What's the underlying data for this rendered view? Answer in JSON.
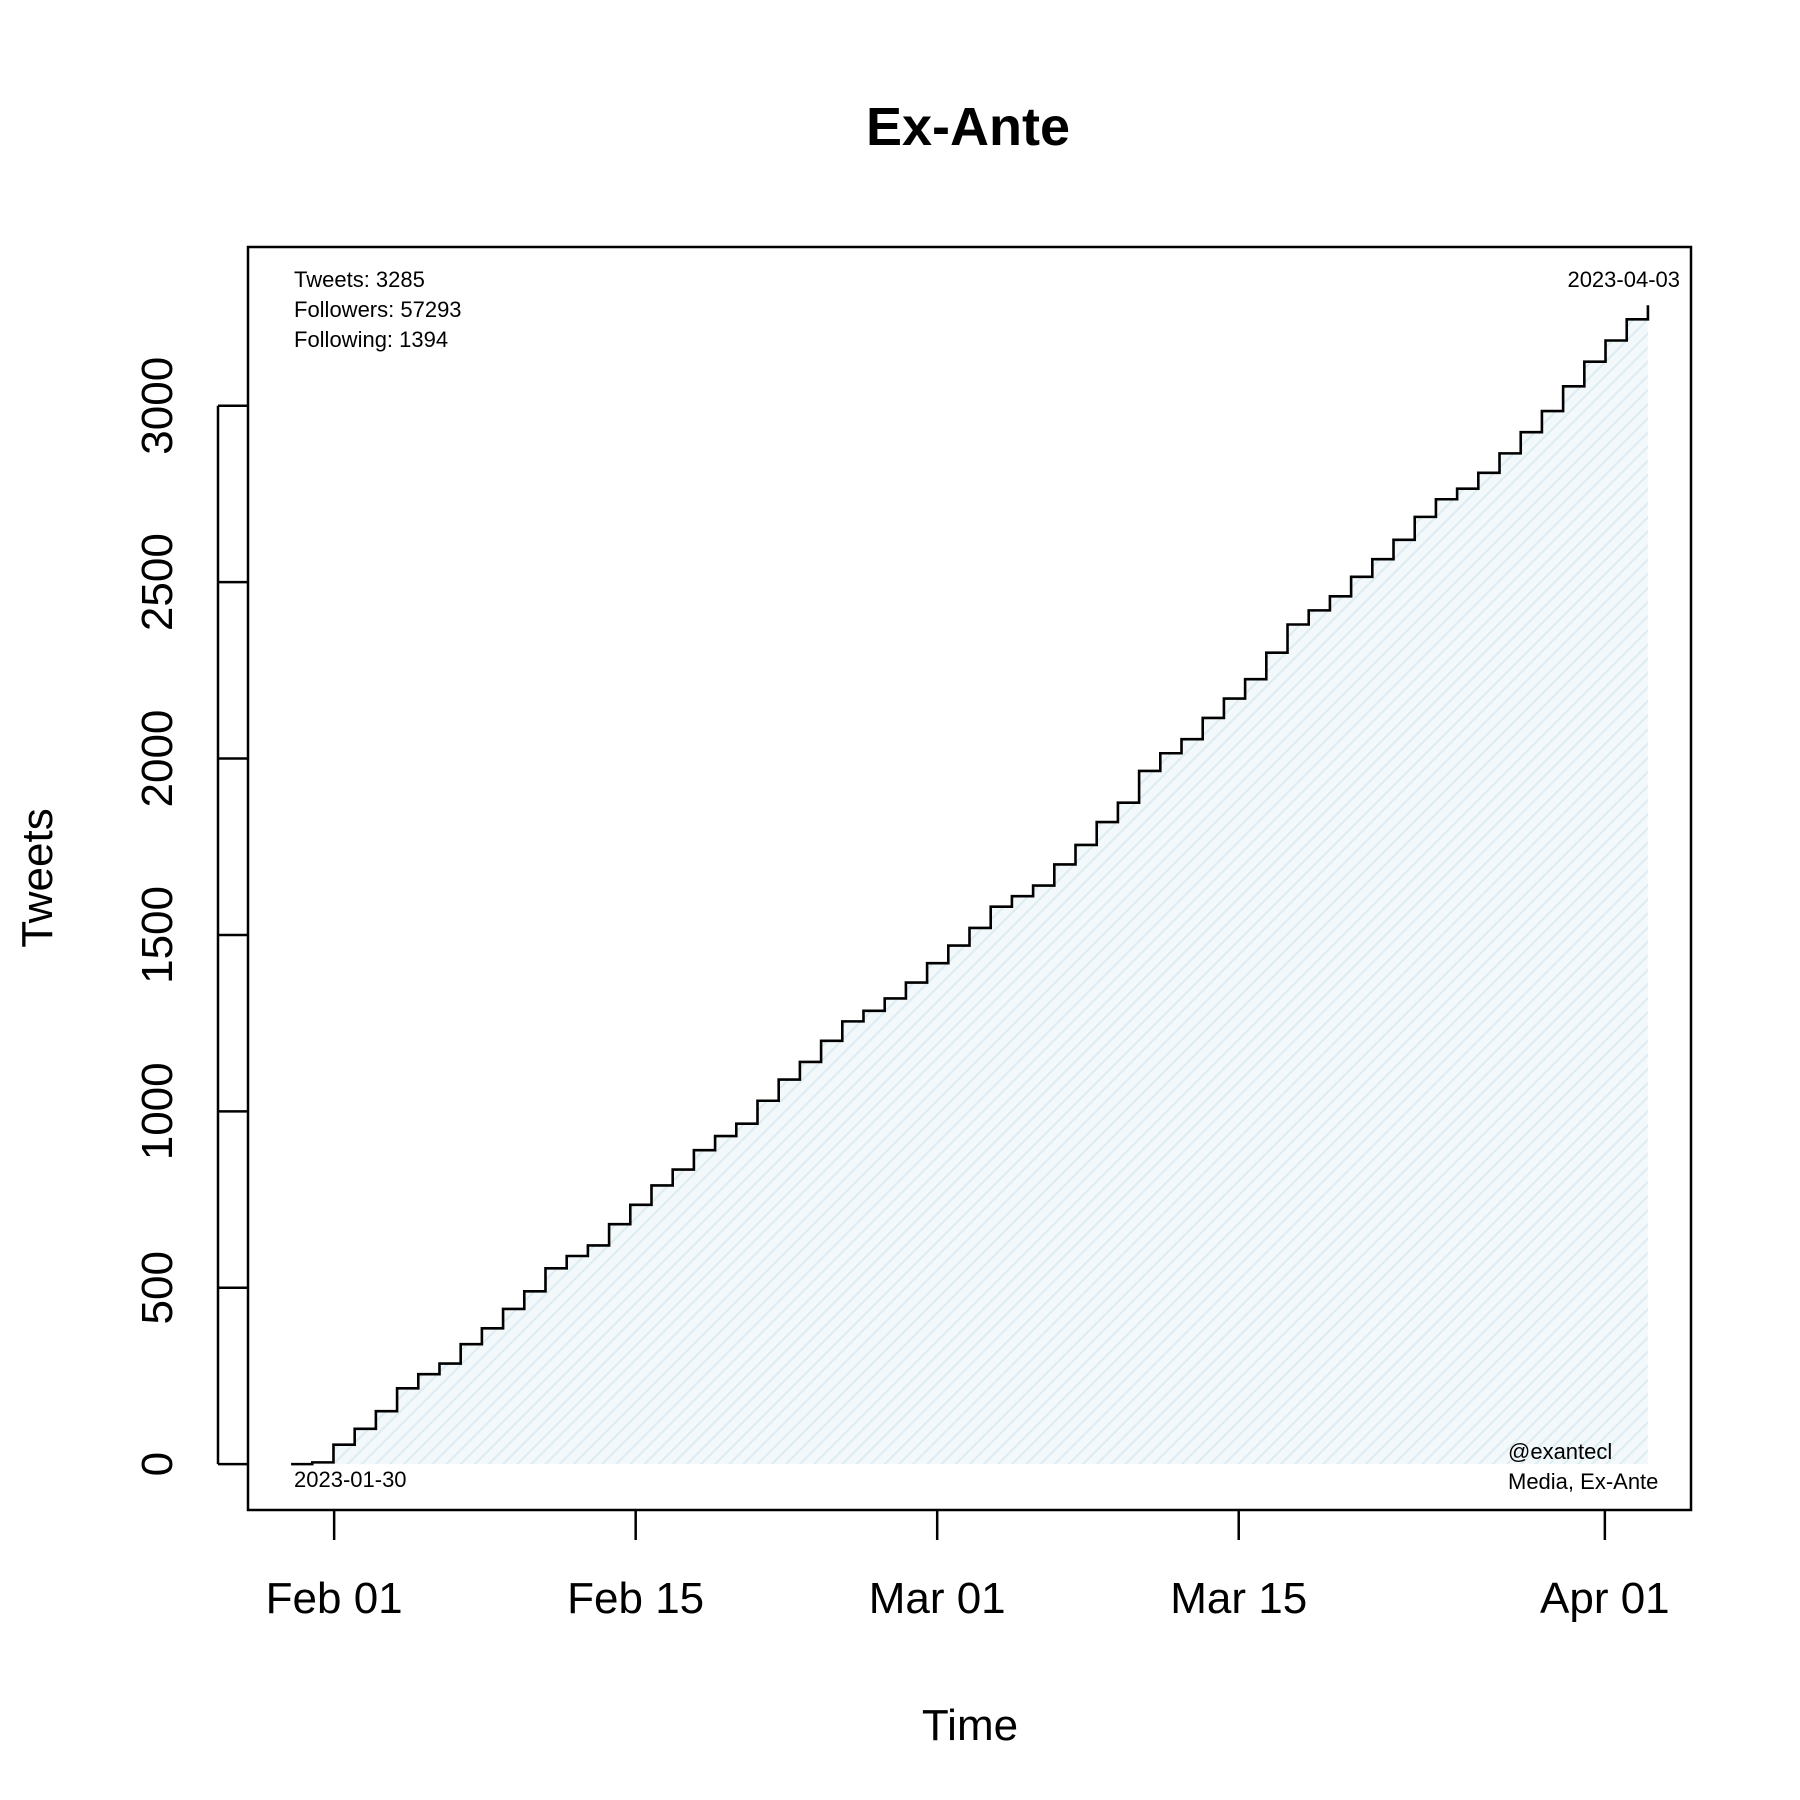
{
  "chart_data": {
    "type": "line",
    "step": true,
    "title": "Ex-Ante",
    "xlabel": "Time",
    "ylabel": "Tweets",
    "x_type": "date",
    "xlim": [
      "2023-01-28",
      "2023-04-05"
    ],
    "ylim": [
      -130,
      3450
    ],
    "grid": false,
    "legend": "none",
    "fill": true,
    "colors": {
      "line": "#000000",
      "fill": "#e8f3f7",
      "frame": "#000000"
    },
    "x_ticks": [
      {
        "date": "2023-02-01",
        "label": "Feb 01"
      },
      {
        "date": "2023-02-15",
        "label": "Feb 15"
      },
      {
        "date": "2023-03-01",
        "label": "Mar 01"
      },
      {
        "date": "2023-03-15",
        "label": "Mar 15"
      },
      {
        "date": "2023-04-01",
        "label": "Apr 01"
      }
    ],
    "y_ticks": [
      0,
      500,
      1000,
      1500,
      2000,
      2500,
      3000
    ],
    "series": [
      {
        "start_date": "2023-01-30",
        "end_date": "2023-04-03",
        "values": [
          0,
          5,
          55,
          100,
          150,
          215,
          255,
          285,
          340,
          385,
          440,
          490,
          555,
          590,
          620,
          680,
          735,
          790,
          835,
          890,
          930,
          965,
          1030,
          1090,
          1140,
          1200,
          1255,
          1285,
          1320,
          1365,
          1420,
          1470,
          1520,
          1580,
          1610,
          1640,
          1700,
          1755,
          1820,
          1875,
          1965,
          2015,
          2055,
          2115,
          2170,
          2225,
          2300,
          2380,
          2420,
          2460,
          2515,
          2565,
          2620,
          2685,
          2735,
          2765,
          2810,
          2865,
          2925,
          2985,
          3055,
          3125,
          3185,
          3245,
          3285
        ]
      }
    ],
    "annotations": {
      "stats": [
        "Tweets: 3285",
        "Followers: 57293",
        "Following: 1394"
      ],
      "start_label": "2023-01-30",
      "end_label": "2023-04-03",
      "credits": [
        "@exantecl",
        "Media, Ex-Ante"
      ]
    }
  }
}
